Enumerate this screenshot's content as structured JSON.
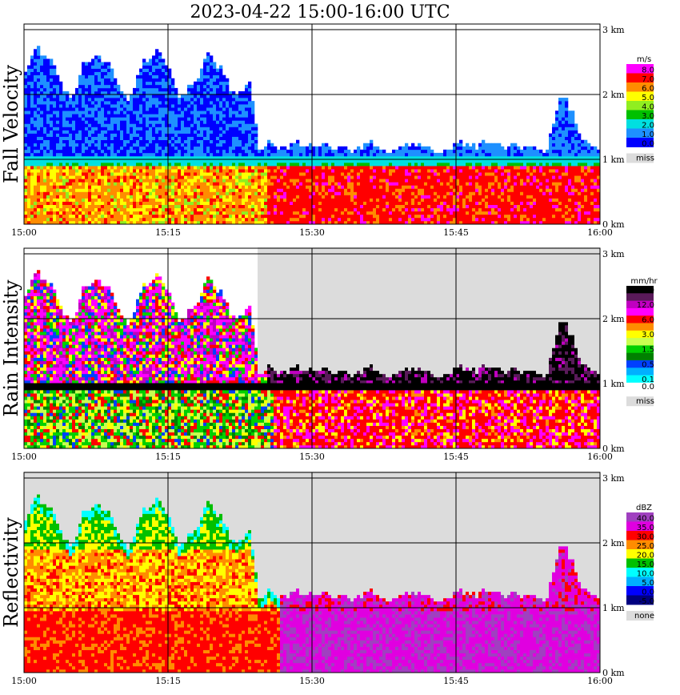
{
  "chart_data": {
    "type": "heatmap",
    "title": "2023-04-22  15:00-16:00 UTC",
    "x_ticks": [
      "15:00",
      "15:15",
      "15:30",
      "15:45",
      "16:00"
    ],
    "y_ticks": [
      "0 km",
      "1 km",
      "2 km",
      "3 km"
    ],
    "ylim_km": [
      0,
      3.1
    ],
    "grid": true,
    "panels": [
      {
        "ylabel": "Fall Velocity",
        "unit": "m/s",
        "legend": [
          {
            "label": "8.0",
            "color": "#ff00ff"
          },
          {
            "label": "7.0",
            "color": "#ff0000"
          },
          {
            "label": "6.0",
            "color": "#ff8c00"
          },
          {
            "label": "5.0",
            "color": "#ffff00"
          },
          {
            "label": "4.0",
            "color": "#90ee20"
          },
          {
            "label": "3.0",
            "color": "#00c000"
          },
          {
            "label": "2.0",
            "color": "#00e0e0"
          },
          {
            "label": "1.0",
            "color": "#1e90ff"
          },
          {
            "label": "0.0",
            "color": "#0000ff"
          },
          {
            "label": "miss",
            "color": "#dcdcdc"
          }
        ],
        "miss_label": "miss"
      },
      {
        "ylabel": "Rain Intensity",
        "unit": "mm/hr",
        "legend": [
          {
            "label": "48.0",
            "color": "#000000"
          },
          {
            "label": "",
            "color": "#5a1a5a"
          },
          {
            "label": "12.0",
            "color": "#c000c0"
          },
          {
            "label": "",
            "color": "#ff00ff"
          },
          {
            "label": "6.0",
            "color": "#ff0000"
          },
          {
            "label": "",
            "color": "#ff8c00"
          },
          {
            "label": "3.0",
            "color": "#ffff00"
          },
          {
            "label": "",
            "color": "#c8ff50"
          },
          {
            "label": "1.5",
            "color": "#00d000"
          },
          {
            "label": "",
            "color": "#008000"
          },
          {
            "label": "0.5",
            "color": "#0040ff"
          },
          {
            "label": "",
            "color": "#00b0ff"
          },
          {
            "label": "0.1",
            "color": "#00ffff"
          },
          {
            "label": "0.0",
            "color": "#ffffff"
          }
        ],
        "miss_label": "miss"
      },
      {
        "ylabel": "Reflectivity",
        "unit": "dBZ",
        "legend": [
          {
            "label": "40.0",
            "color": "#a040c0"
          },
          {
            "label": "35.0",
            "color": "#e000e0"
          },
          {
            "label": "30.0",
            "color": "#ff0000"
          },
          {
            "label": "25.0",
            "color": "#ff8c00"
          },
          {
            "label": "20.0",
            "color": "#ffff00"
          },
          {
            "label": "15.0",
            "color": "#00c000"
          },
          {
            "label": "10.0",
            "color": "#00ffff"
          },
          {
            "label": "5.0",
            "color": "#00b0ff"
          },
          {
            "label": "0.0",
            "color": "#0000ff"
          },
          {
            "label": "-5.0",
            "color": "#000080"
          }
        ],
        "miss_label": "none"
      }
    ]
  }
}
